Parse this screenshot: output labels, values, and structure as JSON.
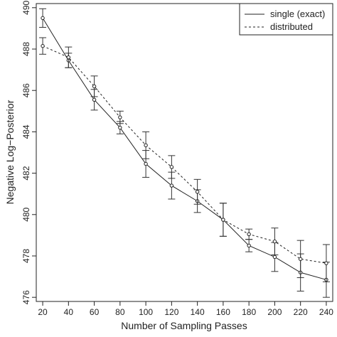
{
  "chart_data": {
    "type": "line",
    "title": "",
    "xlabel": "Number of Sampling Passes",
    "ylabel": "Negative Log−Posterior",
    "x": [
      20,
      40,
      60,
      80,
      100,
      120,
      140,
      160,
      180,
      200,
      220,
      240
    ],
    "xticks": [
      "20",
      "40",
      "60",
      "80",
      "100",
      "120",
      "140",
      "160",
      "180",
      "200",
      "220",
      "240"
    ],
    "yticks": [
      "476",
      "478",
      "480",
      "482",
      "484",
      "486",
      "488",
      "490"
    ],
    "ylim": [
      475.8,
      490.2
    ],
    "xlim": [
      15,
      245
    ],
    "grid": false,
    "legend_position": "top-right",
    "series": [
      {
        "name": "single (exact)",
        "style": "solid",
        "values": [
          489.5,
          487.45,
          485.55,
          484.2,
          482.45,
          481.4,
          480.65,
          479.75,
          478.5,
          477.95,
          477.2,
          476.85
        ],
        "error": [
          0.45,
          0.35,
          0.5,
          0.3,
          0.65,
          0.65,
          0.55,
          0.8,
          0.3,
          0.7,
          0.9,
          0.85
        ]
      },
      {
        "name": "distributed",
        "style": "dashed",
        "values": [
          488.15,
          487.6,
          486.2,
          484.7,
          483.35,
          482.3,
          481.1,
          479.75,
          479.05,
          478.7,
          477.85,
          477.65
        ],
        "error": [
          0.4,
          0.5,
          0.5,
          0.3,
          0.65,
          0.55,
          0.6,
          0.8,
          0.25,
          0.65,
          0.9,
          0.9
        ]
      }
    ]
  }
}
